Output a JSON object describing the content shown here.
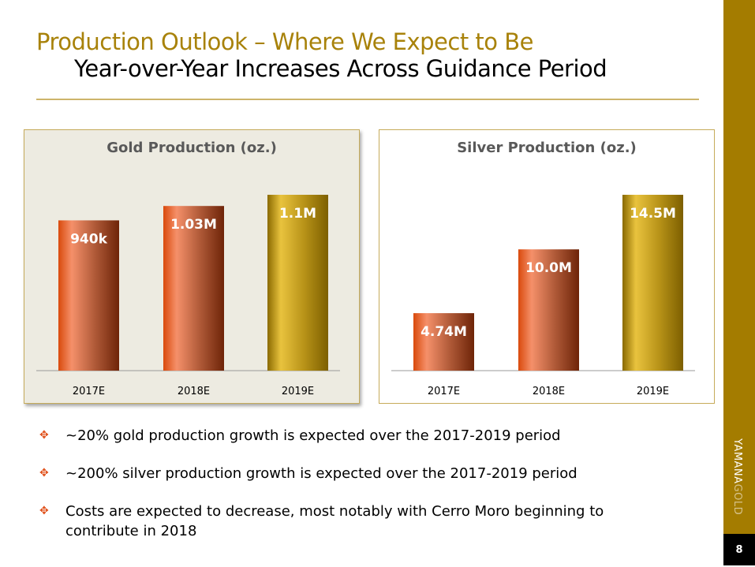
{
  "header": {
    "title": "Production Outlook – Where We Expect to Be",
    "subtitle": "Year-over-Year Increases Across Guidance Period"
  },
  "sidebar": {
    "logo": "YAMANAGOLD",
    "logo_part1": "YAMANA",
    "logo_part2": "GOLD",
    "page_number": "8",
    "color": "#a47c00"
  },
  "chart_data": [
    {
      "type": "bar",
      "title": "Gold Production (oz.)",
      "categories": [
        "2017E",
        "2018E",
        "2019E"
      ],
      "values": [
        940000,
        1030000,
        1100000
      ],
      "labels": [
        "940k",
        "1.03M",
        "1.1M"
      ],
      "xlabel": "",
      "ylabel": "",
      "colors": [
        "copper",
        "copper",
        "gold"
      ]
    },
    {
      "type": "bar",
      "title": "Silver Production (oz.)",
      "categories": [
        "2017E",
        "2018E",
        "2019E"
      ],
      "values": [
        4740000,
        10000000,
        14500000
      ],
      "labels": [
        "4.74M",
        "10.0M",
        "14.5M"
      ],
      "xlabel": "",
      "ylabel": "",
      "colors": [
        "copper",
        "copper",
        "gold"
      ]
    }
  ],
  "bullets": [
    "~20% gold production growth is expected over the 2017-2019 period",
    "~200% silver production growth is expected over the 2017-2019 period",
    "Costs are expected to decrease, most notably with Cerro Moro beginning to contribute in 2018"
  ],
  "bullet_icon": "four-diamond-bullet-icon"
}
